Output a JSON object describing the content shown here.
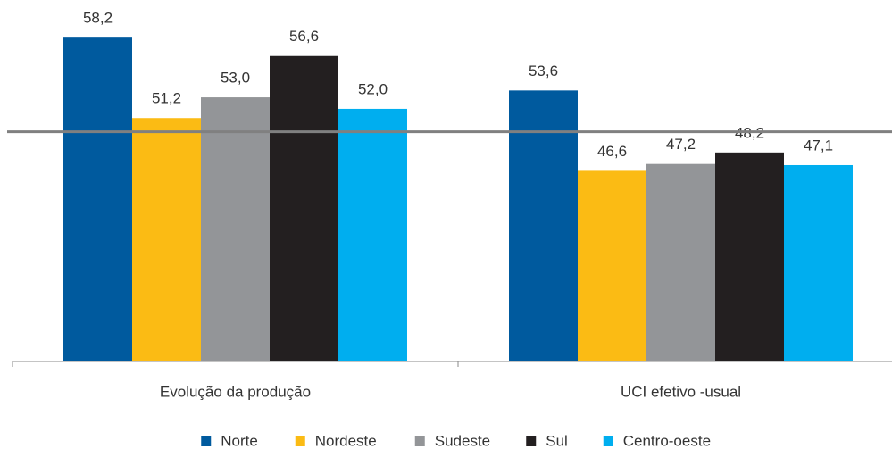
{
  "chart_data": {
    "type": "bar",
    "categories": [
      "Evolução da produção",
      "UCI efetivo -usual"
    ],
    "series": [
      {
        "name": "Norte",
        "color": "#005a9e",
        "values": [
          58.2,
          53.6
        ],
        "value_labels": [
          "58,2",
          "53,6"
        ]
      },
      {
        "name": "Nordeste",
        "color": "#fbbb14",
        "values": [
          51.2,
          46.6
        ],
        "value_labels": [
          "51,2",
          "46,6"
        ]
      },
      {
        "name": "Sudeste",
        "color": "#939598",
        "values": [
          53.0,
          47.2
        ],
        "value_labels": [
          "53,0",
          "47,2"
        ]
      },
      {
        "name": "Sul",
        "color": "#231f20",
        "values": [
          56.6,
          48.2
        ],
        "value_labels": [
          "56,6",
          "48,2"
        ]
      },
      {
        "name": "Centro-oeste",
        "color": "#00aeef",
        "values": [
          52.0,
          47.1
        ],
        "value_labels": [
          "52,0",
          "47,1"
        ]
      }
    ],
    "ylim": [
      30,
      60
    ],
    "reference_line": 50,
    "legend": "bottom"
  }
}
